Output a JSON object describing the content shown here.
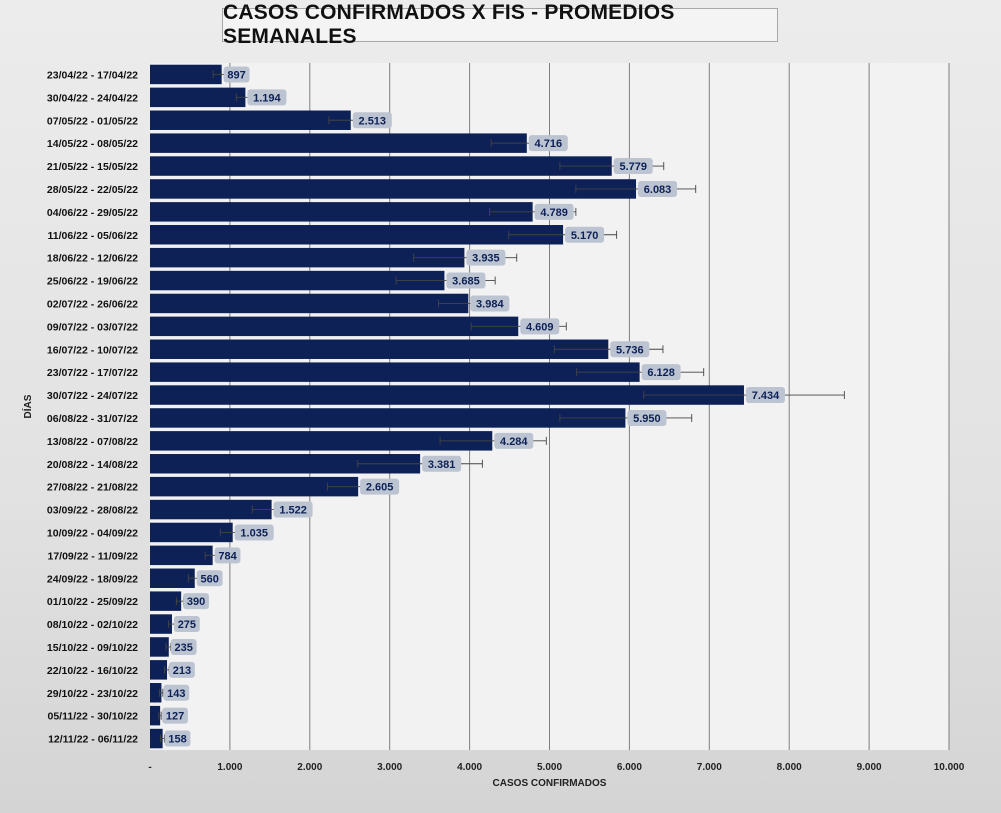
{
  "colors": {
    "bar": "#0d2156",
    "plot_bg": "#f2f2f2",
    "label_bg": "#bcc4d2",
    "label_text": "#0d2156",
    "grid": "#7f7f7f"
  },
  "chart_data": {
    "type": "bar",
    "orientation": "horizontal",
    "title": "CASOS CONFIRMADOS X FIS - PROMEDIOS SEMANALES",
    "xlabel": "CASOS CONFIRMADOS",
    "ylabel": "DÍAS",
    "xlim": [
      0,
      10000
    ],
    "x_ticks": [
      0,
      1000,
      2000,
      3000,
      4000,
      5000,
      6000,
      7000,
      8000,
      9000,
      10000
    ],
    "x_tick_labels": [
      "-",
      "1.000",
      "2.000",
      "3.000",
      "4.000",
      "5.000",
      "6.000",
      "7.000",
      "8.000",
      "9.000",
      "10.000"
    ],
    "grid": true,
    "error_bars": true,
    "categories": [
      "23/04/22 - 17/04/22",
      "30/04/22 - 24/04/22",
      "07/05/22 - 01/05/22",
      "14/05/22 - 08/05/22",
      "21/05/22 - 15/05/22",
      "28/05/22 - 22/05/22",
      "04/06/22 - 29/05/22",
      "11/06/22 - 05/06/22",
      "18/06/22 - 12/06/22",
      "25/06/22 - 19/06/22",
      "02/07/22 - 26/06/22",
      "09/07/22 - 03/07/22",
      "16/07/22 - 10/07/22",
      "23/07/22 - 17/07/22",
      "30/07/22 - 24/07/22",
      "06/08/22 - 31/07/22",
      "13/08/22 - 07/08/22",
      "20/08/22 - 14/08/22",
      "27/08/22 - 21/08/22",
      "03/09/22 - 28/08/22",
      "10/09/22 - 04/09/22",
      "17/09/22 - 11/09/22",
      "24/09/22 - 18/09/22",
      "01/10/22 - 25/09/22",
      "08/10/22 - 02/10/22",
      "15/10/22 - 09/10/22",
      "22/10/22 - 16/10/22",
      "29/10/22 - 23/10/22",
      "05/11/22 - 30/10/22",
      "12/11/22 - 06/11/22"
    ],
    "values": [
      897,
      1194,
      2513,
      4716,
      5779,
      6083,
      4789,
      5170,
      3935,
      3685,
      3984,
      4609,
      5736,
      6128,
      7434,
      5950,
      4284,
      3381,
      2605,
      1522,
      1035,
      784,
      560,
      390,
      275,
      235,
      213,
      143,
      127,
      158
    ],
    "value_labels": [
      "897",
      "1.194",
      "2.513",
      "4.716",
      "5.779",
      "6.083",
      "4.789",
      "5.170",
      "3.935",
      "3.685",
      "3.984",
      "4.609",
      "5.736",
      "6.128",
      "7.434",
      "5.950",
      "4.284",
      "3.381",
      "2.605",
      "1.522",
      "1.035",
      "784",
      "560",
      "390",
      "275",
      "235",
      "213",
      "143",
      "127",
      "158"
    ],
    "error_low": [
      790,
      1080,
      2240,
      4270,
      5130,
      5330,
      4250,
      4490,
      3300,
      3080,
      3610,
      4020,
      5060,
      5340,
      6180,
      5130,
      3630,
      2600,
      2220,
      1280,
      880,
      690,
      480,
      330,
      230,
      200,
      180,
      120,
      110,
      130
    ],
    "error_high": [
      930,
      1250,
      2650,
      4960,
      6430,
      6830,
      5330,
      5840,
      4590,
      4320,
      4280,
      5210,
      6420,
      6930,
      8690,
      6780,
      4960,
      4160,
      2880,
      1680,
      1120,
      850,
      620,
      420,
      310,
      260,
      240,
      160,
      140,
      180
    ]
  }
}
